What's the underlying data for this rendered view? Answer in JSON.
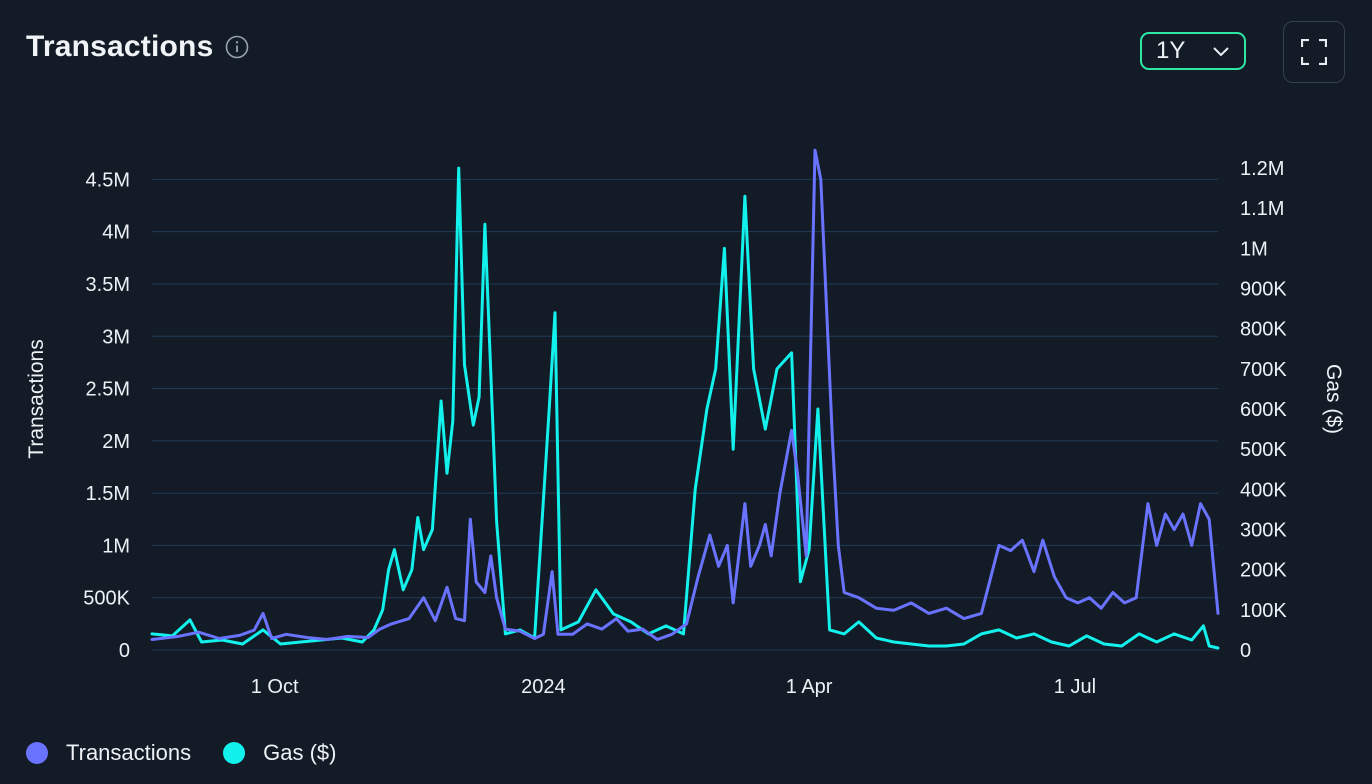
{
  "header": {
    "title": "Transactions"
  },
  "controls": {
    "range_value": "1Y"
  },
  "colors": {
    "transactions": "#6a73ff",
    "gas": "#13f1ec",
    "grid": "#1f3d57",
    "background": "#131b26"
  },
  "icons": {
    "info": "info-icon",
    "dropdown": "chevron-down-icon",
    "fullscreen": "fullscreen-icon"
  },
  "legend": {
    "items": [
      {
        "label": "Transactions",
        "color": "#6a73ff"
      },
      {
        "label": "Gas ($)",
        "color": "#13f1ec"
      }
    ]
  },
  "chart_data": {
    "type": "line",
    "x_tick_labels": [
      "1 Oct",
      "2024",
      "1 Apr",
      "1 Jul"
    ],
    "x_tick_dates": [
      "2023-10-01",
      "2024-01-01",
      "2024-04-01",
      "2024-07-01"
    ],
    "x_range": [
      "2023-08-20",
      "2024-08-19"
    ],
    "y_left": {
      "label": "Transactions",
      "ticks": [
        "0",
        "500K",
        "1M",
        "1.5M",
        "2M",
        "2.5M",
        "3M",
        "3.5M",
        "4M",
        "4.5M"
      ],
      "range": [
        0,
        4800000
      ]
    },
    "y_right": {
      "label": "Gas ($)",
      "ticks": [
        "0",
        "100K",
        "200K",
        "300K",
        "400K",
        "500K",
        "600K",
        "700K",
        "800K",
        "900K",
        "1M",
        "1.1M",
        "1.2M"
      ],
      "range": [
        0,
        1250000
      ]
    },
    "grid": true,
    "legend_position": "bottom-left",
    "series": [
      {
        "name": "Transactions",
        "axis": "left",
        "points": [
          [
            "2023-08-20",
            100000
          ],
          [
            "2023-08-29",
            130000
          ],
          [
            "2023-09-05",
            170000
          ],
          [
            "2023-09-12",
            110000
          ],
          [
            "2023-09-19",
            140000
          ],
          [
            "2023-09-24",
            190000
          ],
          [
            "2023-09-27",
            350000
          ],
          [
            "2023-09-30",
            110000
          ],
          [
            "2023-10-05",
            150000
          ],
          [
            "2023-10-12",
            120000
          ],
          [
            "2023-10-19",
            100000
          ],
          [
            "2023-10-26",
            130000
          ],
          [
            "2023-11-02",
            120000
          ],
          [
            "2023-11-06",
            200000
          ],
          [
            "2023-11-10",
            250000
          ],
          [
            "2023-11-16",
            300000
          ],
          [
            "2023-11-21",
            500000
          ],
          [
            "2023-11-25",
            280000
          ],
          [
            "2023-11-29",
            600000
          ],
          [
            "2023-12-02",
            300000
          ],
          [
            "2023-12-05",
            280000
          ],
          [
            "2023-12-07",
            1250000
          ],
          [
            "2023-12-09",
            650000
          ],
          [
            "2023-12-12",
            550000
          ],
          [
            "2023-12-14",
            900000
          ],
          [
            "2023-12-16",
            500000
          ],
          [
            "2023-12-19",
            200000
          ],
          [
            "2023-12-24",
            180000
          ],
          [
            "2023-12-29",
            110000
          ],
          [
            "2024-01-01",
            150000
          ],
          [
            "2024-01-04",
            750000
          ],
          [
            "2024-01-06",
            150000
          ],
          [
            "2024-01-11",
            150000
          ],
          [
            "2024-01-16",
            250000
          ],
          [
            "2024-01-21",
            200000
          ],
          [
            "2024-01-26",
            300000
          ],
          [
            "2024-01-30",
            180000
          ],
          [
            "2024-02-04",
            200000
          ],
          [
            "2024-02-09",
            100000
          ],
          [
            "2024-02-14",
            150000
          ],
          [
            "2024-02-19",
            250000
          ],
          [
            "2024-02-23",
            700000
          ],
          [
            "2024-02-27",
            1100000
          ],
          [
            "2024-03-01",
            800000
          ],
          [
            "2024-03-04",
            1000000
          ],
          [
            "2024-03-06",
            450000
          ],
          [
            "2024-03-10",
            1400000
          ],
          [
            "2024-03-12",
            800000
          ],
          [
            "2024-03-15",
            1000000
          ],
          [
            "2024-03-17",
            1200000
          ],
          [
            "2024-03-19",
            900000
          ],
          [
            "2024-03-22",
            1500000
          ],
          [
            "2024-03-26",
            2100000
          ],
          [
            "2024-03-28",
            1700000
          ],
          [
            "2024-03-31",
            900000
          ],
          [
            "2024-04-03",
            4780000
          ],
          [
            "2024-04-05",
            4500000
          ],
          [
            "2024-04-09",
            2000000
          ],
          [
            "2024-04-11",
            1000000
          ],
          [
            "2024-04-13",
            550000
          ],
          [
            "2024-04-18",
            500000
          ],
          [
            "2024-04-24",
            400000
          ],
          [
            "2024-04-30",
            380000
          ],
          [
            "2024-05-06",
            450000
          ],
          [
            "2024-05-12",
            350000
          ],
          [
            "2024-05-18",
            400000
          ],
          [
            "2024-05-24",
            300000
          ],
          [
            "2024-05-30",
            350000
          ],
          [
            "2024-06-05",
            1000000
          ],
          [
            "2024-06-09",
            950000
          ],
          [
            "2024-06-13",
            1050000
          ],
          [
            "2024-06-17",
            750000
          ],
          [
            "2024-06-20",
            1050000
          ],
          [
            "2024-06-24",
            700000
          ],
          [
            "2024-06-28",
            500000
          ],
          [
            "2024-07-02",
            450000
          ],
          [
            "2024-07-06",
            500000
          ],
          [
            "2024-07-10",
            400000
          ],
          [
            "2024-07-14",
            550000
          ],
          [
            "2024-07-18",
            450000
          ],
          [
            "2024-07-22",
            500000
          ],
          [
            "2024-07-26",
            1400000
          ],
          [
            "2024-07-29",
            1000000
          ],
          [
            "2024-08-01",
            1300000
          ],
          [
            "2024-08-04",
            1150000
          ],
          [
            "2024-08-07",
            1300000
          ],
          [
            "2024-08-10",
            1000000
          ],
          [
            "2024-08-13",
            1400000
          ],
          [
            "2024-08-16",
            1250000
          ],
          [
            "2024-08-19",
            350000
          ]
        ]
      },
      {
        "name": "Gas ($)",
        "axis": "right",
        "points": [
          [
            "2023-08-20",
            40000
          ],
          [
            "2023-08-27",
            35000
          ],
          [
            "2023-09-02",
            75000
          ],
          [
            "2023-09-06",
            20000
          ],
          [
            "2023-09-13",
            25000
          ],
          [
            "2023-09-20",
            15000
          ],
          [
            "2023-09-27",
            50000
          ],
          [
            "2023-10-03",
            15000
          ],
          [
            "2023-10-10",
            20000
          ],
          [
            "2023-10-17",
            25000
          ],
          [
            "2023-10-24",
            30000
          ],
          [
            "2023-10-31",
            20000
          ],
          [
            "2023-11-04",
            50000
          ],
          [
            "2023-11-07",
            100000
          ],
          [
            "2023-11-09",
            200000
          ],
          [
            "2023-11-11",
            250000
          ],
          [
            "2023-11-14",
            150000
          ],
          [
            "2023-11-17",
            200000
          ],
          [
            "2023-11-19",
            330000
          ],
          [
            "2023-11-21",
            250000
          ],
          [
            "2023-11-24",
            300000
          ],
          [
            "2023-11-27",
            620000
          ],
          [
            "2023-11-29",
            440000
          ],
          [
            "2023-12-01",
            570000
          ],
          [
            "2023-12-03",
            1200000
          ],
          [
            "2023-12-05",
            710000
          ],
          [
            "2023-12-08",
            560000
          ],
          [
            "2023-12-10",
            630000
          ],
          [
            "2023-12-12",
            1060000
          ],
          [
            "2023-12-14",
            690000
          ],
          [
            "2023-12-16",
            320000
          ],
          [
            "2023-12-19",
            40000
          ],
          [
            "2023-12-24",
            50000
          ],
          [
            "2023-12-29",
            30000
          ],
          [
            "2024-01-03",
            600000
          ],
          [
            "2024-01-05",
            840000
          ],
          [
            "2024-01-07",
            50000
          ],
          [
            "2024-01-13",
            70000
          ],
          [
            "2024-01-19",
            150000
          ],
          [
            "2024-01-25",
            90000
          ],
          [
            "2024-01-31",
            70000
          ],
          [
            "2024-02-06",
            40000
          ],
          [
            "2024-02-12",
            60000
          ],
          [
            "2024-02-18",
            40000
          ],
          [
            "2024-02-22",
            400000
          ],
          [
            "2024-02-26",
            600000
          ],
          [
            "2024-02-29",
            700000
          ],
          [
            "2024-03-03",
            1000000
          ],
          [
            "2024-03-06",
            500000
          ],
          [
            "2024-03-10",
            1130000
          ],
          [
            "2024-03-13",
            700000
          ],
          [
            "2024-03-17",
            550000
          ],
          [
            "2024-03-21",
            700000
          ],
          [
            "2024-03-26",
            740000
          ],
          [
            "2024-03-29",
            170000
          ],
          [
            "2024-04-01",
            250000
          ],
          [
            "2024-04-04",
            600000
          ],
          [
            "2024-04-08",
            50000
          ],
          [
            "2024-04-13",
            40000
          ],
          [
            "2024-04-18",
            70000
          ],
          [
            "2024-04-24",
            30000
          ],
          [
            "2024-04-30",
            20000
          ],
          [
            "2024-05-06",
            15000
          ],
          [
            "2024-05-12",
            10000
          ],
          [
            "2024-05-18",
            10000
          ],
          [
            "2024-05-24",
            15000
          ],
          [
            "2024-05-30",
            40000
          ],
          [
            "2024-06-05",
            50000
          ],
          [
            "2024-06-11",
            30000
          ],
          [
            "2024-06-17",
            40000
          ],
          [
            "2024-06-23",
            20000
          ],
          [
            "2024-06-29",
            10000
          ],
          [
            "2024-07-05",
            35000
          ],
          [
            "2024-07-11",
            15000
          ],
          [
            "2024-07-17",
            10000
          ],
          [
            "2024-07-23",
            40000
          ],
          [
            "2024-07-29",
            20000
          ],
          [
            "2024-08-04",
            40000
          ],
          [
            "2024-08-10",
            25000
          ],
          [
            "2024-08-14",
            60000
          ],
          [
            "2024-08-16",
            10000
          ],
          [
            "2024-08-19",
            5000
          ]
        ]
      }
    ]
  }
}
